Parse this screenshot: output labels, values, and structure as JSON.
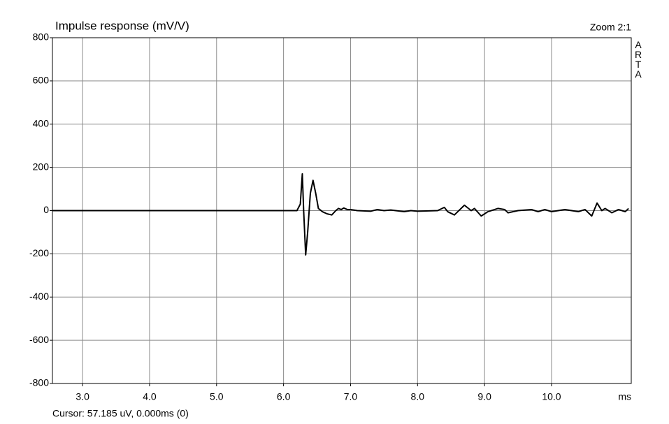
{
  "chart_data": {
    "type": "line",
    "title": "Impulse response (mV/V)",
    "zoom_label": "Zoom 2:1",
    "watermark": "ARTA",
    "x_label": "ms",
    "cursor_label": "Cursor: 57.185 uV, 0.000ms (0)",
    "color": "#000000",
    "grid": true,
    "x": [
      2.55,
      6.2,
      6.25,
      6.28,
      6.3,
      6.33,
      6.36,
      6.4,
      6.44,
      6.48,
      6.52,
      6.58,
      6.65,
      6.72,
      6.78,
      6.82,
      6.86,
      6.9,
      6.95,
      7.0,
      7.1,
      7.3,
      7.4,
      7.5,
      7.6,
      7.8,
      7.9,
      8.0,
      8.3,
      8.4,
      8.45,
      8.55,
      8.7,
      8.8,
      8.85,
      8.95,
      9.05,
      9.2,
      9.3,
      9.35,
      9.5,
      9.7,
      9.8,
      9.9,
      10.0,
      10.2,
      10.4,
      10.5,
      10.6,
      10.68,
      10.75,
      10.8,
      10.9,
      11.0,
      11.1,
      11.15
    ],
    "values": [
      0,
      0,
      30,
      170,
      0,
      -205,
      -100,
      80,
      140,
      80,
      10,
      -5,
      -15,
      -20,
      0,
      10,
      5,
      12,
      5,
      5,
      0,
      -3,
      5,
      0,
      3,
      -5,
      0,
      -3,
      0,
      15,
      -5,
      -20,
      25,
      0,
      10,
      -25,
      -5,
      10,
      5,
      -10,
      0,
      5,
      -5,
      5,
      -5,
      5,
      -5,
      5,
      -25,
      35,
      0,
      10,
      -10,
      5,
      -5,
      10
    ],
    "xlim": [
      2.55,
      11.19
    ],
    "ylim": [
      -800,
      800
    ],
    "xticks": [
      {
        "value": 3,
        "label": "3.0"
      },
      {
        "value": 4,
        "label": "4.0"
      },
      {
        "value": 5,
        "label": "5.0"
      },
      {
        "value": 6,
        "label": "6.0"
      },
      {
        "value": 7,
        "label": "7.0"
      },
      {
        "value": 8,
        "label": "8.0"
      },
      {
        "value": 9,
        "label": "9.0"
      },
      {
        "value": 10,
        "label": "10.0"
      }
    ],
    "yticks": [
      -800,
      -600,
      -400,
      -200,
      0,
      200,
      400,
      600,
      800
    ]
  }
}
